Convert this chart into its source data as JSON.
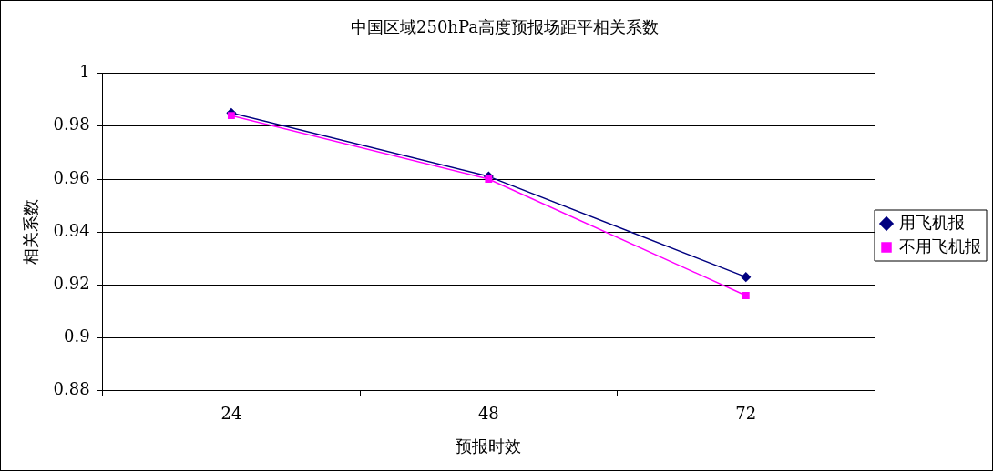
{
  "chart_data": {
    "type": "line",
    "title": "中国区域250hPa高度预报场距平相关系数",
    "xlabel": "预报时效",
    "ylabel": "相关系数",
    "categories": [
      "24",
      "48",
      "72"
    ],
    "series": [
      {
        "name": "用飞机报",
        "color": "#000080",
        "marker": "diamond",
        "values": [
          0.985,
          0.961,
          0.923
        ]
      },
      {
        "name": "不用飞机报",
        "color": "#ff00ff",
        "marker": "square",
        "values": [
          0.984,
          0.96,
          0.916
        ]
      }
    ],
    "ylim": [
      0.88,
      1
    ],
    "yticks": [
      0.88,
      0.9,
      0.92,
      0.94,
      0.96,
      0.98,
      1
    ],
    "grid": "y",
    "legend": "right"
  }
}
